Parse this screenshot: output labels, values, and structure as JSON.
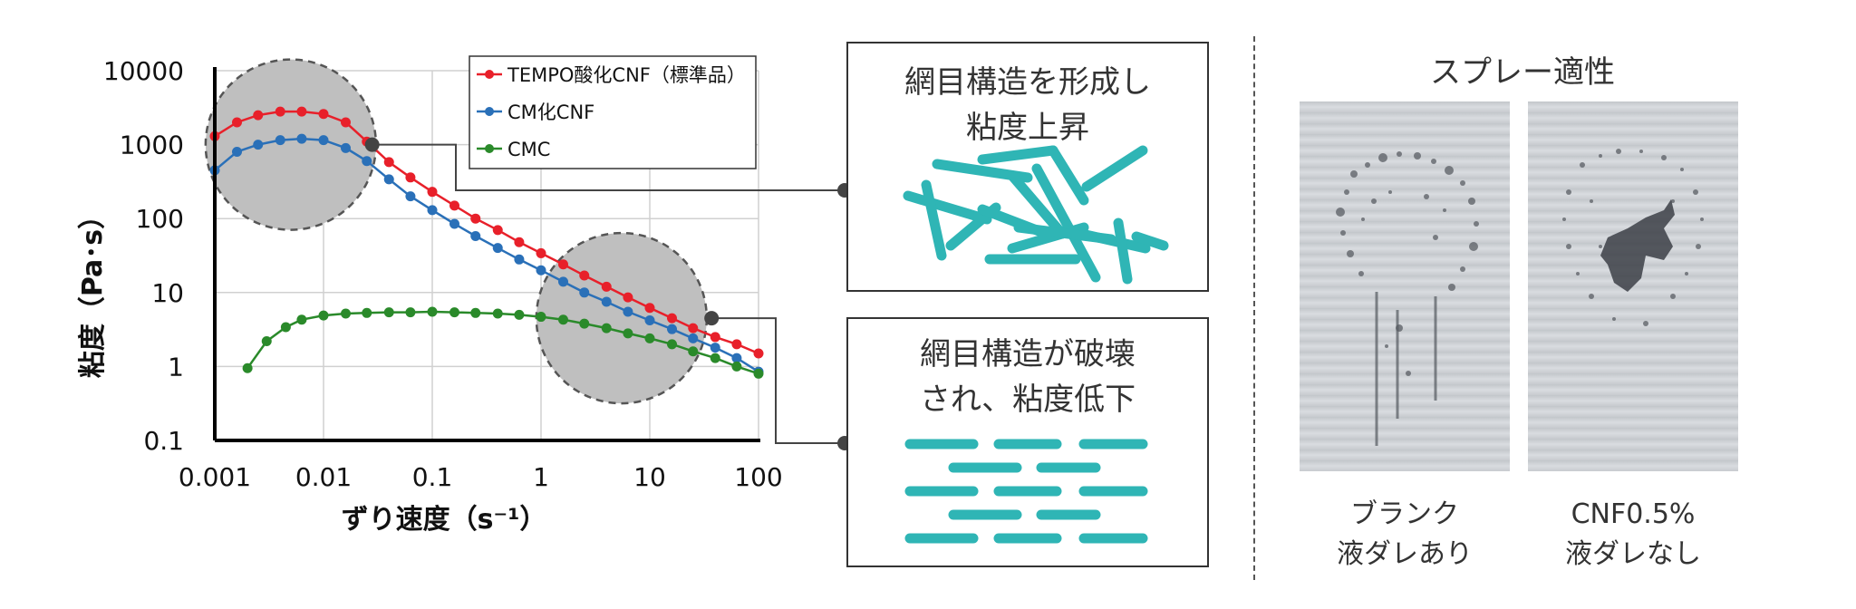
{
  "chart_data": {
    "type": "line",
    "xscale": "log",
    "yscale": "log",
    "xlim": [
      0.001,
      100
    ],
    "ylim": [
      0.1,
      10000
    ],
    "grid": true,
    "legend_position": "top-right",
    "xlabel": "ずり速度（s⁻¹）",
    "ylabel": "粘度（Pa･s）",
    "x_ticks": [
      "0.001",
      "0.01",
      "0.1",
      "1",
      "10",
      "100"
    ],
    "y_ticks": [
      "10000",
      "1000",
      "100",
      "10",
      "1",
      "0.1"
    ],
    "series": [
      {
        "name": "TEMPO酸化CNF（標準品）",
        "color": "#e8202a",
        "x": [
          0.001,
          0.0016,
          0.0025,
          0.004,
          0.0063,
          0.01,
          0.016,
          0.025,
          0.04,
          0.063,
          0.1,
          0.16,
          0.25,
          0.4,
          0.63,
          1,
          1.6,
          2.5,
          4,
          6.3,
          10,
          16,
          25,
          40,
          63,
          100
        ],
        "y": [
          1300,
          2000,
          2500,
          2800,
          2800,
          2600,
          2000,
          1100,
          580,
          360,
          230,
          150,
          100,
          70,
          48,
          34,
          24,
          17,
          12,
          8.6,
          6.2,
          4.5,
          3.3,
          2.5,
          2.0,
          1.5
        ]
      },
      {
        "name": "CM化CNF",
        "color": "#2a70b8",
        "x": [
          0.001,
          0.0016,
          0.0025,
          0.004,
          0.0063,
          0.01,
          0.016,
          0.025,
          0.04,
          0.063,
          0.1,
          0.16,
          0.25,
          0.4,
          0.63,
          1,
          1.6,
          2.5,
          4,
          6.3,
          10,
          16,
          25,
          40,
          63,
          100
        ],
        "y": [
          450,
          800,
          1000,
          1150,
          1200,
          1150,
          900,
          600,
          340,
          200,
          130,
          85,
          58,
          40,
          28,
          20,
          14,
          10,
          7.5,
          5.5,
          4.2,
          3.2,
          2.4,
          1.8,
          1.3,
          0.85
        ]
      },
      {
        "name": "CMC",
        "color": "#2a8a2a",
        "x": [
          0.002,
          0.003,
          0.0045,
          0.0063,
          0.01,
          0.016,
          0.025,
          0.04,
          0.063,
          0.1,
          0.16,
          0.25,
          0.4,
          0.63,
          1,
          1.6,
          2.5,
          4,
          6.3,
          10,
          16,
          25,
          40,
          63,
          100
        ],
        "y": [
          0.95,
          2.2,
          3.4,
          4.3,
          4.9,
          5.2,
          5.3,
          5.4,
          5.4,
          5.5,
          5.4,
          5.3,
          5.2,
          5.0,
          4.7,
          4.3,
          3.8,
          3.3,
          2.8,
          2.4,
          2.0,
          1.6,
          1.3,
          1.0,
          0.8
        ]
      }
    ],
    "highlights": [
      {
        "x": 0.005,
        "y": 1000
      },
      {
        "x": 5.5,
        "y": 4.5
      }
    ],
    "markers": [
      {
        "x": 0.028,
        "y": 1000
      },
      {
        "x": 37,
        "y": 4.5
      }
    ]
  },
  "annotations": {
    "top_box": {
      "lines": [
        "網目構造を形成し",
        "粘度上昇"
      ]
    },
    "bottom_box": {
      "lines": [
        "網目構造が破壊",
        "され、粘度低下"
      ]
    }
  },
  "spray": {
    "title": "スプレー適性",
    "blank_caption": [
      "ブランク",
      "液ダレあり"
    ],
    "cnf_caption": [
      "CNF0.5%",
      "液ダレなし"
    ]
  },
  "colors": {
    "fiber": "#2fb5b5",
    "highlight_fill": "#bfbfbf",
    "axis": "#000000"
  }
}
